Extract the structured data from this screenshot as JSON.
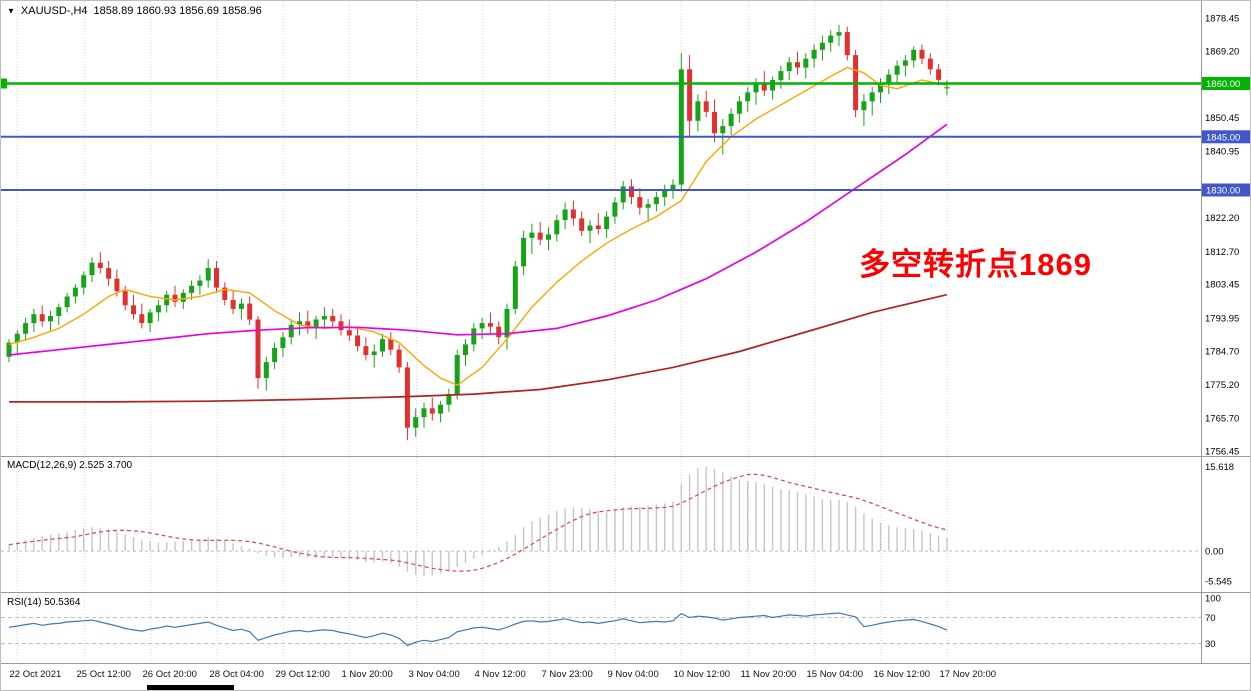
{
  "title_bar": {
    "collapse_icon": "▼",
    "symbol_period": "XAUUSD-,H4",
    "ohlc": "1858.89 1860.93 1856.69 1858.96"
  },
  "annotation": {
    "text": "多空转折点1869",
    "color": "#FF0000"
  },
  "colors": {
    "background": "#FFFFFF",
    "bull": "#17A317",
    "bear": "#E03030",
    "grid": "#DADADA",
    "separator": "#999999",
    "axis_text": "#000000",
    "macd_histogram": "#C6C6C6",
    "macd_signal": "#E04545",
    "rsi_line": "#3C78C0"
  },
  "chart_data": {
    "type": "candlestick",
    "symbol": "XAUUSD-",
    "timeframe": "H4",
    "ohlc_display": {
      "open": "1858.89",
      "high": "1860.93",
      "low": "1856.69",
      "close": "1858.96"
    },
    "price_axis": {
      "max": 1883.25,
      "min": 1755.05,
      "ticks": [
        "1878.45",
        "1869.20",
        "1850.45",
        "1840.95",
        "1822.20",
        "1812.70",
        "1803.45",
        "1793.95",
        "1784.70",
        "1775.20",
        "1765.70",
        "1756.45"
      ]
    },
    "time_axis": {
      "first_gridline_index": 1,
      "candles_per_gridline": 8,
      "labels": [
        "22 Oct 2021",
        "25 Oct 12:00",
        "26 Oct 20:00",
        "28 Oct 04:00",
        "29 Oct 12:00",
        "1 Nov 20:00",
        "3 Nov 04:00",
        "4 Nov 12:00",
        "7 Nov 23:00",
        "9 Nov 04:00",
        "10 Nov 12:00",
        "11 Nov 20:00",
        "15 Nov 04:00",
        "16 Nov 12:00",
        "17 Nov 20:00"
      ]
    },
    "horizontal_lines": [
      {
        "price": 1860.0,
        "label": "1860.00",
        "color": "#00B400",
        "left_marker": true
      },
      {
        "price": 1845.0,
        "label": "1845.00",
        "color": "#4156C8",
        "left_marker": false
      },
      {
        "price": 1830.0,
        "label": "1830.00",
        "color": "#4156C8",
        "left_marker": false
      }
    ],
    "moving_averages": [
      {
        "name": "fast-ma",
        "color": "#FFA500",
        "points": [
          [
            0,
            1786.5
          ],
          [
            3,
            1788.5
          ],
          [
            6,
            1791
          ],
          [
            9,
            1795
          ],
          [
            12,
            1800
          ],
          [
            14,
            1802
          ],
          [
            17,
            1800
          ],
          [
            20,
            1799
          ],
          [
            23,
            1800
          ],
          [
            26,
            1802
          ],
          [
            29,
            1801
          ],
          [
            32,
            1796
          ],
          [
            35,
            1792
          ],
          [
            38,
            1791
          ],
          [
            41,
            1791.5
          ],
          [
            44,
            1790
          ],
          [
            47,
            1787
          ],
          [
            50,
            1780.5
          ],
          [
            52,
            1777
          ],
          [
            54,
            1775
          ],
          [
            57,
            1780
          ],
          [
            60,
            1788
          ],
          [
            63,
            1797
          ],
          [
            66,
            1804
          ],
          [
            69,
            1810
          ],
          [
            72,
            1815
          ],
          [
            75,
            1819
          ],
          [
            78,
            1822.5
          ],
          [
            81,
            1827
          ],
          [
            84,
            1838
          ],
          [
            87,
            1845
          ],
          [
            90,
            1850
          ],
          [
            93,
            1854
          ],
          [
            96,
            1858
          ],
          [
            99,
            1862
          ],
          [
            101,
            1864.5
          ],
          [
            103,
            1863
          ],
          [
            105,
            1859.5
          ],
          [
            107,
            1858.5
          ],
          [
            110,
            1861
          ],
          [
            113,
            1859.5
          ]
        ]
      },
      {
        "name": "medium-ma",
        "color": "#E800E8",
        "points": [
          [
            0,
            1783.5
          ],
          [
            6,
            1785
          ],
          [
            12,
            1786.5
          ],
          [
            18,
            1788
          ],
          [
            24,
            1789.5
          ],
          [
            30,
            1790.5
          ],
          [
            36,
            1791.2
          ],
          [
            42,
            1791.3
          ],
          [
            48,
            1790.5
          ],
          [
            54,
            1789.2
          ],
          [
            60,
            1789.5
          ],
          [
            66,
            1791
          ],
          [
            72,
            1794.5
          ],
          [
            78,
            1799
          ],
          [
            84,
            1805
          ],
          [
            90,
            1812.5
          ],
          [
            96,
            1821
          ],
          [
            102,
            1830.5
          ],
          [
            108,
            1840
          ],
          [
            113,
            1848.5
          ]
        ]
      },
      {
        "name": "slow-ma",
        "color": "#B22222",
        "points": [
          [
            0,
            1770.3
          ],
          [
            12,
            1770.3
          ],
          [
            24,
            1770.5
          ],
          [
            36,
            1771
          ],
          [
            48,
            1771.8
          ],
          [
            56,
            1772.5
          ],
          [
            64,
            1773.8
          ],
          [
            72,
            1776.5
          ],
          [
            80,
            1780
          ],
          [
            88,
            1784.5
          ],
          [
            96,
            1790
          ],
          [
            104,
            1795.5
          ],
          [
            113,
            1800.5
          ]
        ]
      }
    ],
    "candles": [
      [
        1783.0,
        1788.0,
        1781.5,
        1787.0
      ],
      [
        1787.0,
        1790.5,
        1784.0,
        1789.5
      ],
      [
        1789.5,
        1794.0,
        1787.5,
        1792.5
      ],
      [
        1792.5,
        1796.5,
        1790.0,
        1795.0
      ],
      [
        1795.0,
        1797.5,
        1791.5,
        1793.0
      ],
      [
        1793.0,
        1796.0,
        1790.5,
        1794.5
      ],
      [
        1794.5,
        1798.0,
        1792.0,
        1797.0
      ],
      [
        1797.0,
        1801.0,
        1795.5,
        1800.0
      ],
      [
        1800.0,
        1803.5,
        1798.0,
        1802.5
      ],
      [
        1802.5,
        1807.0,
        1800.5,
        1806.0
      ],
      [
        1806.0,
        1811.0,
        1804.0,
        1809.5
      ],
      [
        1809.5,
        1812.5,
        1806.5,
        1808.0
      ],
      [
        1808.0,
        1810.0,
        1803.0,
        1805.0
      ],
      [
        1805.0,
        1807.5,
        1800.0,
        1801.5
      ],
      [
        1801.5,
        1803.0,
        1796.0,
        1797.5
      ],
      [
        1797.5,
        1800.5,
        1793.5,
        1795.0
      ],
      [
        1795.0,
        1798.0,
        1791.0,
        1792.5
      ],
      [
        1792.5,
        1796.5,
        1790.0,
        1795.5
      ],
      [
        1795.5,
        1799.0,
        1793.0,
        1797.5
      ],
      [
        1797.5,
        1801.5,
        1795.5,
        1800.5
      ],
      [
        1800.5,
        1803.0,
        1797.0,
        1798.5
      ],
      [
        1798.5,
        1802.0,
        1796.5,
        1801.0
      ],
      [
        1801.0,
        1804.5,
        1799.0,
        1803.0
      ],
      [
        1803.0,
        1806.0,
        1800.5,
        1804.5
      ],
      [
        1804.5,
        1810.5,
        1802.5,
        1808.0
      ],
      [
        1808.0,
        1810.0,
        1801.0,
        1802.5
      ],
      [
        1802.5,
        1804.0,
        1797.5,
        1799.0
      ],
      [
        1799.0,
        1801.5,
        1795.0,
        1796.5
      ],
      [
        1796.5,
        1799.5,
        1793.5,
        1798.0
      ],
      [
        1798.0,
        1800.0,
        1792.0,
        1793.5
      ],
      [
        1793.5,
        1794.5,
        1774.0,
        1777.0
      ],
      [
        1777.0,
        1783.0,
        1773.5,
        1781.5
      ],
      [
        1781.5,
        1787.0,
        1779.5,
        1785.5
      ],
      [
        1785.5,
        1790.0,
        1783.0,
        1788.5
      ],
      [
        1788.5,
        1793.5,
        1786.5,
        1792.0
      ],
      [
        1792.0,
        1795.5,
        1789.0,
        1793.0
      ],
      [
        1793.0,
        1796.0,
        1789.5,
        1791.0
      ],
      [
        1791.0,
        1794.5,
        1788.0,
        1793.5
      ],
      [
        1793.5,
        1797.0,
        1791.0,
        1794.5
      ],
      [
        1794.5,
        1796.5,
        1791.5,
        1793.0
      ],
      [
        1793.0,
        1795.0,
        1789.0,
        1790.5
      ],
      [
        1790.5,
        1793.5,
        1787.5,
        1789.0
      ],
      [
        1789.0,
        1791.0,
        1784.5,
        1786.0
      ],
      [
        1786.0,
        1788.5,
        1782.0,
        1783.5
      ],
      [
        1783.5,
        1786.5,
        1780.0,
        1784.5
      ],
      [
        1784.5,
        1789.5,
        1783.0,
        1788.0
      ],
      [
        1788.0,
        1790.0,
        1783.5,
        1785.0
      ],
      [
        1785.0,
        1786.5,
        1778.5,
        1780.0
      ],
      [
        1780.0,
        1781.5,
        1759.5,
        1763.0
      ],
      [
        1763.0,
        1768.5,
        1760.5,
        1766.0
      ],
      [
        1766.0,
        1770.0,
        1763.0,
        1768.5
      ],
      [
        1768.5,
        1771.5,
        1765.0,
        1767.0
      ],
      [
        1767.0,
        1770.5,
        1764.5,
        1769.5
      ],
      [
        1769.5,
        1774.0,
        1767.5,
        1772.5
      ],
      [
        1772.5,
        1785.0,
        1771.0,
        1783.5
      ],
      [
        1783.5,
        1788.0,
        1780.5,
        1786.5
      ],
      [
        1786.5,
        1792.5,
        1784.5,
        1791.0
      ],
      [
        1791.0,
        1794.0,
        1788.0,
        1792.5
      ],
      [
        1792.5,
        1795.5,
        1789.5,
        1791.5
      ],
      [
        1791.5,
        1793.0,
        1786.5,
        1788.5
      ],
      [
        1788.5,
        1798.0,
        1785.0,
        1796.5
      ],
      [
        1796.5,
        1810.0,
        1795.0,
        1808.5
      ],
      [
        1808.5,
        1818.5,
        1806.0,
        1816.5
      ],
      [
        1816.5,
        1820.5,
        1812.0,
        1818.0
      ],
      [
        1818.0,
        1821.0,
        1814.5,
        1816.0
      ],
      [
        1816.0,
        1819.5,
        1813.0,
        1817.5
      ],
      [
        1817.5,
        1823.0,
        1815.5,
        1821.5
      ],
      [
        1821.5,
        1826.5,
        1819.0,
        1824.5
      ],
      [
        1824.5,
        1827.0,
        1820.0,
        1822.0
      ],
      [
        1822.0,
        1824.0,
        1817.0,
        1818.5
      ],
      [
        1818.5,
        1821.5,
        1815.0,
        1820.0
      ],
      [
        1820.0,
        1823.5,
        1817.5,
        1819.0
      ],
      [
        1819.0,
        1824.0,
        1816.5,
        1822.5
      ],
      [
        1822.5,
        1828.0,
        1820.5,
        1826.5
      ],
      [
        1826.5,
        1832.5,
        1824.5,
        1831.0
      ],
      [
        1831.0,
        1833.0,
        1826.0,
        1828.0
      ],
      [
        1828.0,
        1830.5,
        1823.0,
        1825.0
      ],
      [
        1825.0,
        1827.5,
        1821.0,
        1826.0
      ],
      [
        1826.0,
        1829.5,
        1824.0,
        1828.0
      ],
      [
        1828.0,
        1831.5,
        1825.5,
        1830.0
      ],
      [
        1830.0,
        1833.0,
        1827.5,
        1831.5
      ],
      [
        1831.5,
        1868.5,
        1829.5,
        1864.0
      ],
      [
        1864.0,
        1868.0,
        1845.0,
        1849.5
      ],
      [
        1849.5,
        1857.0,
        1846.5,
        1855.0
      ],
      [
        1855.0,
        1858.0,
        1850.5,
        1852.0
      ],
      [
        1852.0,
        1855.5,
        1843.5,
        1846.0
      ],
      [
        1846.0,
        1850.0,
        1840.0,
        1848.0
      ],
      [
        1848.0,
        1853.0,
        1845.5,
        1851.5
      ],
      [
        1851.5,
        1856.5,
        1849.0,
        1855.0
      ],
      [
        1855.0,
        1859.0,
        1852.0,
        1857.5
      ],
      [
        1857.5,
        1861.5,
        1854.0,
        1860.0
      ],
      [
        1860.0,
        1863.5,
        1856.5,
        1858.0
      ],
      [
        1858.0,
        1862.0,
        1855.5,
        1861.0
      ],
      [
        1861.0,
        1865.0,
        1858.5,
        1863.5
      ],
      [
        1863.5,
        1867.5,
        1861.0,
        1866.0
      ],
      [
        1866.0,
        1869.0,
        1862.5,
        1864.5
      ],
      [
        1864.5,
        1868.5,
        1861.5,
        1867.0
      ],
      [
        1867.0,
        1871.0,
        1864.5,
        1869.5
      ],
      [
        1869.5,
        1873.5,
        1866.5,
        1871.5
      ],
      [
        1871.5,
        1875.0,
        1869.0,
        1873.5
      ],
      [
        1873.5,
        1876.5,
        1870.5,
        1874.5
      ],
      [
        1874.5,
        1876.0,
        1866.5,
        1868.0
      ],
      [
        1868.0,
        1869.5,
        1850.5,
        1852.5
      ],
      [
        1852.5,
        1857.0,
        1848.0,
        1855.0
      ],
      [
        1855.0,
        1859.0,
        1851.0,
        1857.5
      ],
      [
        1857.5,
        1861.5,
        1854.5,
        1860.0
      ],
      [
        1860.0,
        1864.0,
        1857.0,
        1862.5
      ],
      [
        1862.5,
        1866.5,
        1860.0,
        1865.0
      ],
      [
        1865.0,
        1868.0,
        1862.0,
        1866.5
      ],
      [
        1866.5,
        1870.5,
        1864.5,
        1869.5
      ],
      [
        1869.5,
        1871.0,
        1865.5,
        1867.0
      ],
      [
        1867.0,
        1868.5,
        1862.5,
        1864.0
      ],
      [
        1864.0,
        1865.5,
        1859.5,
        1861.0
      ],
      [
        1858.89,
        1860.93,
        1856.69,
        1858.96
      ]
    ],
    "macd": {
      "label": "MACD(12,26,9) 2.525 3.700",
      "ticks": [
        "15.618",
        "0.00",
        "-5.545"
      ],
      "scale": {
        "min": -7.0,
        "max": 17.0
      },
      "signal_period": 9,
      "histogram": [
        1.2,
        1.6,
        2.0,
        2.4,
        2.8,
        3.0,
        3.3,
        3.6,
        3.9,
        4.2,
        4.4,
        4.3,
        4.0,
        3.6,
        3.1,
        2.6,
        2.1,
        1.8,
        1.6,
        1.7,
        1.8,
        1.9,
        2.1,
        2.3,
        2.5,
        2.3,
        1.9,
        1.4,
        0.9,
        0.4,
        -0.4,
        -0.9,
        -1.2,
        -1.3,
        -1.2,
        -1.1,
        -1.2,
        -1.3,
        -1.2,
        -1.1,
        -1.2,
        -1.4,
        -1.7,
        -2.0,
        -2.1,
        -2.0,
        -2.3,
        -2.9,
        -3.8,
        -4.4,
        -4.6,
        -4.5,
        -4.2,
        -3.7,
        -2.9,
        -2.2,
        -1.4,
        -0.7,
        0.2,
        0.8,
        1.8,
        3.0,
        4.4,
        5.5,
        6.2,
        6.8,
        7.4,
        7.9,
        8.1,
        8.0,
        7.8,
        7.4,
        7.3,
        7.6,
        8.1,
        8.3,
        8.2,
        8.4,
        8.6,
        8.8,
        9.2,
        12.5,
        14.2,
        15.3,
        15.618,
        15.2,
        14.5,
        13.8,
        13.2,
        12.9,
        12.8,
        12.5,
        11.9,
        11.4,
        11.2,
        11.0,
        10.5,
        10.0,
        9.6,
        9.4,
        9.5,
        9.0,
        8.2,
        7.0,
        6.0,
        5.2,
        4.7,
        4.4,
        4.2,
        4.1,
        3.8,
        3.3,
        2.9,
        2.525
      ]
    },
    "rsi": {
      "label": "RSI(14) 50.5364",
      "ticks": [
        "100",
        "70",
        "30"
      ],
      "levels": [
        70,
        30
      ],
      "values": [
        55,
        57,
        59,
        61,
        58,
        60,
        61,
        63,
        64,
        65,
        66,
        63,
        60,
        57,
        53,
        51,
        49,
        52,
        54,
        57,
        55,
        57,
        59,
        61,
        63,
        58,
        54,
        50,
        52,
        48,
        35,
        39,
        43,
        46,
        49,
        50,
        48,
        50,
        51,
        50,
        47,
        45,
        42,
        39,
        42,
        46,
        43,
        38,
        27,
        32,
        35,
        33,
        36,
        39,
        48,
        51,
        54,
        55,
        53,
        51,
        55,
        60,
        64,
        65,
        63,
        64,
        66,
        68,
        65,
        62,
        63,
        61,
        63,
        65,
        68,
        65,
        62,
        63,
        64,
        63,
        65,
        76,
        70,
        72,
        71,
        69,
        66,
        68,
        70,
        71,
        72,
        73,
        70,
        72,
        74,
        73,
        72,
        74,
        75,
        76,
        77,
        74,
        71,
        56,
        58,
        61,
        63,
        65,
        66,
        67,
        64,
        60,
        56,
        50.54
      ]
    }
  }
}
